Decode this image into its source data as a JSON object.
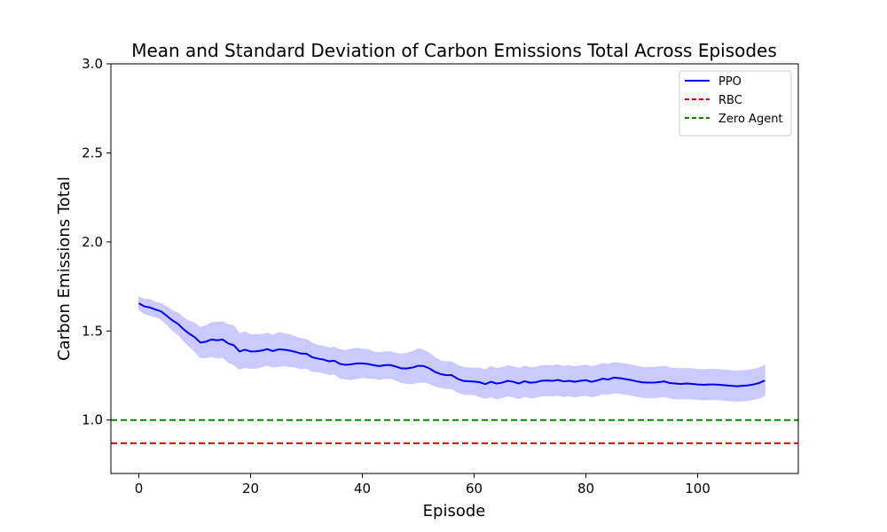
{
  "chart_data": {
    "type": "line",
    "title": "Mean and Standard Deviation of Carbon Emissions Total Across Episodes",
    "xlabel": "Episode",
    "ylabel": "Carbon Emissions Total",
    "xlim": [
      -5,
      118
    ],
    "ylim": [
      0.7,
      3.0
    ],
    "x_ticks": [
      0,
      20,
      40,
      60,
      80,
      100
    ],
    "y_ticks": [
      1.0,
      1.5,
      2.0,
      2.5,
      3.0
    ],
    "x_tick_labels": [
      "0",
      "20",
      "40",
      "60",
      "80",
      "100"
    ],
    "y_tick_labels": [
      "1.0",
      "1.5",
      "2.0",
      "2.5",
      "3.0"
    ],
    "grid": false,
    "legend_position": "top-right",
    "series": [
      {
        "name": "PPO",
        "kind": "line",
        "color": "#0000ee",
        "points": [
          [
            0,
            1.655
          ],
          [
            1,
            1.638
          ],
          [
            2,
            1.632
          ],
          [
            3,
            1.62
          ],
          [
            4,
            1.61
          ],
          [
            5,
            1.585
          ],
          [
            6,
            1.56
          ],
          [
            7,
            1.54
          ],
          [
            8,
            1.51
          ],
          [
            9,
            1.485
          ],
          [
            10,
            1.465
          ],
          [
            11,
            1.435
          ],
          [
            12,
            1.44
          ],
          [
            13,
            1.452
          ],
          [
            14,
            1.448
          ],
          [
            15,
            1.452
          ],
          [
            16,
            1.43
          ],
          [
            17,
            1.42
          ],
          [
            18,
            1.385
          ],
          [
            19,
            1.395
          ],
          [
            20,
            1.385
          ],
          [
            21,
            1.386
          ],
          [
            22,
            1.39
          ],
          [
            23,
            1.398
          ],
          [
            24,
            1.387
          ],
          [
            25,
            1.397
          ],
          [
            26,
            1.395
          ],
          [
            27,
            1.39
          ],
          [
            28,
            1.383
          ],
          [
            29,
            1.373
          ],
          [
            30,
            1.372
          ],
          [
            31,
            1.353
          ],
          [
            32,
            1.345
          ],
          [
            33,
            1.34
          ],
          [
            34,
            1.33
          ],
          [
            35,
            1.333
          ],
          [
            36,
            1.315
          ],
          [
            37,
            1.31
          ],
          [
            38,
            1.313
          ],
          [
            39,
            1.318
          ],
          [
            40,
            1.318
          ],
          [
            41,
            1.315
          ],
          [
            42,
            1.308
          ],
          [
            43,
            1.303
          ],
          [
            44,
            1.308
          ],
          [
            45,
            1.309
          ],
          [
            46,
            1.3
          ],
          [
            47,
            1.29
          ],
          [
            48,
            1.29
          ],
          [
            49,
            1.295
          ],
          [
            50,
            1.305
          ],
          [
            51,
            1.303
          ],
          [
            52,
            1.29
          ],
          [
            53,
            1.27
          ],
          [
            54,
            1.258
          ],
          [
            55,
            1.252
          ],
          [
            56,
            1.252
          ],
          [
            57,
            1.232
          ],
          [
            58,
            1.22
          ],
          [
            59,
            1.218
          ],
          [
            60,
            1.216
          ],
          [
            61,
            1.212
          ],
          [
            62,
            1.202
          ],
          [
            63,
            1.215
          ],
          [
            64,
            1.205
          ],
          [
            65,
            1.21
          ],
          [
            66,
            1.22
          ],
          [
            67,
            1.215
          ],
          [
            68,
            1.205
          ],
          [
            69,
            1.218
          ],
          [
            70,
            1.21
          ],
          [
            71,
            1.212
          ],
          [
            72,
            1.22
          ],
          [
            73,
            1.222
          ],
          [
            74,
            1.22
          ],
          [
            75,
            1.225
          ],
          [
            76,
            1.217
          ],
          [
            77,
            1.22
          ],
          [
            78,
            1.215
          ],
          [
            79,
            1.22
          ],
          [
            80,
            1.224
          ],
          [
            81,
            1.215
          ],
          [
            82,
            1.222
          ],
          [
            83,
            1.232
          ],
          [
            84,
            1.228
          ],
          [
            85,
            1.238
          ],
          [
            86,
            1.235
          ],
          [
            87,
            1.23
          ],
          [
            88,
            1.225
          ],
          [
            89,
            1.218
          ],
          [
            90,
            1.212
          ],
          [
            91,
            1.21
          ],
          [
            92,
            1.21
          ],
          [
            93,
            1.213
          ],
          [
            94,
            1.217
          ],
          [
            95,
            1.208
          ],
          [
            96,
            1.205
          ],
          [
            97,
            1.203
          ],
          [
            98,
            1.205
          ],
          [
            99,
            1.203
          ],
          [
            100,
            1.2
          ],
          [
            101,
            1.198
          ],
          [
            102,
            1.2
          ],
          [
            103,
            1.2
          ],
          [
            104,
            1.198
          ],
          [
            105,
            1.195
          ],
          [
            106,
            1.192
          ],
          [
            107,
            1.19
          ],
          [
            108,
            1.192
          ],
          [
            109,
            1.195
          ],
          [
            110,
            1.2
          ],
          [
            111,
            1.208
          ],
          [
            112,
            1.222
          ]
        ],
        "std": [
          0.035,
          0.04,
          0.045,
          0.04,
          0.045,
          0.05,
          0.055,
          0.06,
          0.065,
          0.07,
          0.08,
          0.085,
          0.09,
          0.095,
          0.1,
          0.1,
          0.105,
          0.11,
          0.1,
          0.1,
          0.095,
          0.095,
          0.09,
          0.09,
          0.09,
          0.095,
          0.09,
          0.09,
          0.085,
          0.085,
          0.08,
          0.08,
          0.075,
          0.075,
          0.075,
          0.075,
          0.08,
          0.08,
          0.085,
          0.085,
          0.08,
          0.08,
          0.075,
          0.075,
          0.075,
          0.075,
          0.075,
          0.08,
          0.085,
          0.09,
          0.095,
          0.09,
          0.085,
          0.08,
          0.075,
          0.075,
          0.075,
          0.075,
          0.075,
          0.075,
          0.075,
          0.08,
          0.08,
          0.085,
          0.085,
          0.085,
          0.085,
          0.085,
          0.085,
          0.085,
          0.085,
          0.085,
          0.085,
          0.085,
          0.085,
          0.085,
          0.085,
          0.085,
          0.085,
          0.085,
          0.085,
          0.085,
          0.085,
          0.085,
          0.085,
          0.085,
          0.085,
          0.085,
          0.085,
          0.085,
          0.085,
          0.085,
          0.085,
          0.085,
          0.085,
          0.085,
          0.085,
          0.085,
          0.085,
          0.085,
          0.085,
          0.085,
          0.085,
          0.085,
          0.085,
          0.085,
          0.085,
          0.085,
          0.085,
          0.085,
          0.085,
          0.085,
          0.085
        ],
        "band_color": "#c8c8ff"
      },
      {
        "name": "RBC",
        "kind": "hline",
        "y": 0.87,
        "color": "#dd0000",
        "dashed": true
      },
      {
        "name": "Zero Agent",
        "kind": "hline",
        "y": 1.0,
        "color": "#008800",
        "dashed": true
      }
    ]
  }
}
